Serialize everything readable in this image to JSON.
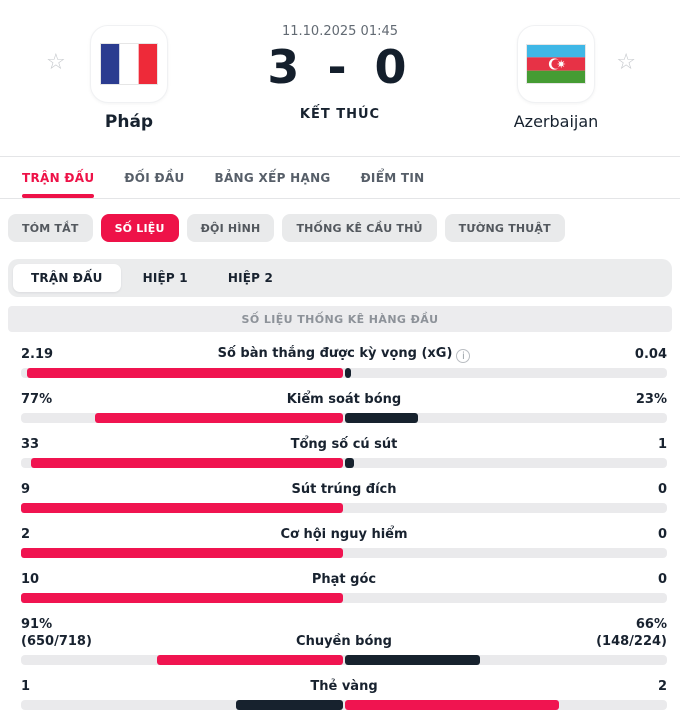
{
  "colors": {
    "accent_red": "#ee1248",
    "text_navy": "#17222f",
    "bar_red": "#f01450",
    "bar_dark": "#17222e",
    "bar_track": "#eaeaec"
  },
  "header": {
    "datetime": "11.10.2025 01:45",
    "score": "3 - 0",
    "status_label": "KẾT THÚC",
    "home_team": {
      "name": "Pháp",
      "flag": "france-flag"
    },
    "away_team": {
      "name": "Azerbaijan",
      "flag": "azerbaijan-flag"
    },
    "favorite_icon": "☆"
  },
  "nav_tabs": [
    {
      "label": "TRẬN ĐẤU",
      "active": true
    },
    {
      "label": "ĐỐI ĐẦU",
      "active": false
    },
    {
      "label": "BẢNG XẾP HẠNG",
      "active": false
    },
    {
      "label": "ĐIỂM TIN",
      "active": false
    }
  ],
  "sub_tabs": [
    {
      "label": "TÓM TẮT",
      "active": false
    },
    {
      "label": "SỐ LIỆU",
      "active": true
    },
    {
      "label": "ĐỘI HÌNH",
      "active": false
    },
    {
      "label": "THỐNG KÊ CẦU THỦ",
      "active": false
    },
    {
      "label": "TƯỜNG THUẬT",
      "active": false
    }
  ],
  "period_tabs": [
    {
      "label": "TRẬN ĐẤU",
      "active": true
    },
    {
      "label": "HIỆP 1",
      "active": false
    },
    {
      "label": "HIỆP 2",
      "active": false
    }
  ],
  "stats_section": {
    "title": "SỐ LIỆU THỐNG KÊ HÀNG ĐẦU",
    "rows": [
      {
        "label": "Số bàn thắng được kỳ vọng (xG)",
        "home": "2.19",
        "away": "0.04",
        "home_val": 2.19,
        "away_val": 0.04,
        "info": true
      },
      {
        "label": "Kiểm soát bóng",
        "home": "77%",
        "away": "23%",
        "home_val": 77,
        "away_val": 23
      },
      {
        "label": "Tổng số cú sút",
        "home": "33",
        "away": "1",
        "home_val": 33,
        "away_val": 1
      },
      {
        "label": "Sút trúng đích",
        "home": "9",
        "away": "0",
        "home_val": 9,
        "away_val": 0
      },
      {
        "label": "Cơ hội nguy hiểm",
        "home": "2",
        "away": "0",
        "home_val": 2,
        "away_val": 0
      },
      {
        "label": "Phạt góc",
        "home": "10",
        "away": "0",
        "home_val": 10,
        "away_val": 0
      },
      {
        "label": "Chuyền bóng",
        "home": "91%",
        "home_sub": "(650/718)",
        "away": "66%",
        "away_sub": "(148/224)",
        "home_val": 91,
        "away_val": 66
      },
      {
        "label": "Thẻ vàng",
        "home": "1",
        "away": "2",
        "home_val": 1,
        "away_val": 2
      }
    ]
  }
}
